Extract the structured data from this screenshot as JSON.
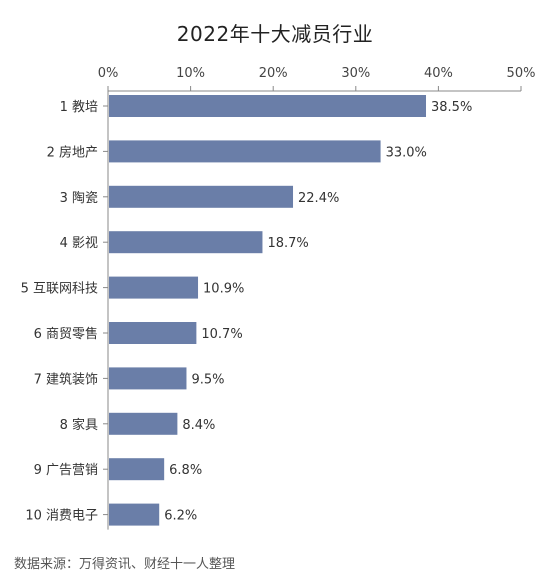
{
  "title": "2022年十大减员行业",
  "source": "数据来源：万得资讯、财经十一人整理",
  "bar_color": "#6a7ea8",
  "axis_color": "#888888",
  "chart_data": {
    "type": "bar",
    "orientation": "horizontal",
    "title": "2022年十大减员行业",
    "categories": [
      "1 教培",
      "2 房地产",
      "3 陶瓷",
      "4 影视",
      "5 互联网科技",
      "6 商贸零售",
      "7 建筑装饰",
      "8 家具",
      "9 广告营销",
      "10 消费电子"
    ],
    "values": [
      38.5,
      33.0,
      22.4,
      18.7,
      10.9,
      10.7,
      9.5,
      8.4,
      6.8,
      6.2
    ],
    "value_labels": [
      "38.5%",
      "33.0%",
      "22.4%",
      "18.7%",
      "10.9%",
      "10.7%",
      "9.5%",
      "8.4%",
      "6.8%",
      "6.2%"
    ],
    "x_ticks": [
      0,
      10,
      20,
      30,
      40,
      50
    ],
    "x_tick_labels": [
      "0%",
      "10%",
      "20%",
      "30%",
      "40%",
      "50%"
    ],
    "xlim": [
      0,
      50
    ],
    "axis_position": "top",
    "grid": false
  }
}
